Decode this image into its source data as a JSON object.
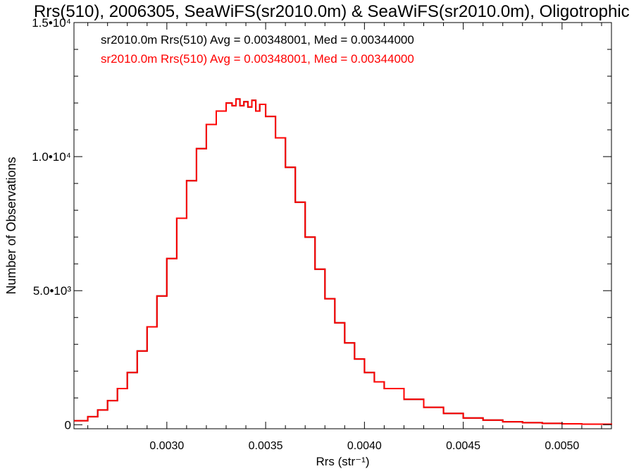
{
  "chart_data": {
    "type": "histogram",
    "title": "Rrs(510), 2006305, SeaWiFS(sr2010.0m) & SeaWiFS(sr2010.0m), Oligotrophic",
    "xlabel": "Rrs (str⁻¹)",
    "ylabel": "Number of Observations",
    "xlim": [
      0.00253,
      0.00525
    ],
    "ylim": [
      -150,
      15000
    ],
    "x_ticks": [
      {
        "value": 0.003,
        "label": "0.0030"
      },
      {
        "value": 0.0035,
        "label": "0.0035"
      },
      {
        "value": 0.004,
        "label": "0.0040"
      },
      {
        "value": 0.0045,
        "label": "0.0045"
      },
      {
        "value": 0.005,
        "label": "0.0050"
      }
    ],
    "y_ticks": [
      {
        "value": 0,
        "label": "0"
      },
      {
        "value": 5000,
        "label": "5.0•10³"
      },
      {
        "value": 10000,
        "label": "1.0•10⁴"
      },
      {
        "value": 15000,
        "label": "1.5•10⁴"
      }
    ],
    "annotations": [
      {
        "text": "sr2010.0m Rrs(510) Avg = 0.00348001, Med = 0.00344000",
        "color": "#000000"
      },
      {
        "text": "sr2010.0m Rrs(510) Avg = 0.00348001, Med = 0.00344000",
        "color": "#ff0000"
      }
    ],
    "series": [
      {
        "color": "#000000",
        "x": [
          0.00253,
          0.0026,
          0.00265,
          0.0027,
          0.00275,
          0.0028,
          0.00285,
          0.0029,
          0.00295,
          0.003,
          0.00305,
          0.0031,
          0.00315,
          0.0032,
          0.00325,
          0.0033,
          0.00333,
          0.00335,
          0.00337,
          0.00339,
          0.00341,
          0.00343,
          0.00345,
          0.00347,
          0.0035,
          0.00355,
          0.0036,
          0.00365,
          0.0037,
          0.00375,
          0.0038,
          0.00385,
          0.0039,
          0.00395,
          0.004,
          0.00405,
          0.0041,
          0.0042,
          0.0043,
          0.0044,
          0.0045,
          0.0046,
          0.0047,
          0.0048,
          0.0049,
          0.005,
          0.0051,
          0.00525
        ],
        "y": [
          150,
          300,
          550,
          900,
          1350,
          1950,
          2750,
          3650,
          4800,
          6200,
          7700,
          9100,
          10300,
          11200,
          11700,
          12000,
          11900,
          12150,
          11900,
          12050,
          11850,
          12100,
          11700,
          11950,
          11500,
          10700,
          9600,
          8300,
          7000,
          5800,
          4700,
          3800,
          3050,
          2450,
          1950,
          1600,
          1350,
          950,
          650,
          420,
          250,
          170,
          110,
          75,
          50,
          35,
          20,
          0
        ]
      },
      {
        "color": "#ff0000",
        "x": [
          0.00253,
          0.0026,
          0.00265,
          0.0027,
          0.00275,
          0.0028,
          0.00285,
          0.0029,
          0.00295,
          0.003,
          0.00305,
          0.0031,
          0.00315,
          0.0032,
          0.00325,
          0.0033,
          0.00333,
          0.00335,
          0.00337,
          0.00339,
          0.00341,
          0.00343,
          0.00345,
          0.00347,
          0.0035,
          0.00355,
          0.0036,
          0.00365,
          0.0037,
          0.00375,
          0.0038,
          0.00385,
          0.0039,
          0.00395,
          0.004,
          0.00405,
          0.0041,
          0.0042,
          0.0043,
          0.0044,
          0.0045,
          0.0046,
          0.0047,
          0.0048,
          0.0049,
          0.005,
          0.0051,
          0.00525
        ],
        "y": [
          150,
          300,
          550,
          900,
          1350,
          1950,
          2750,
          3650,
          4800,
          6200,
          7700,
          9100,
          10300,
          11200,
          11700,
          12000,
          11900,
          12150,
          11900,
          12050,
          11850,
          12100,
          11700,
          11950,
          11500,
          10700,
          9600,
          8300,
          7000,
          5800,
          4700,
          3800,
          3050,
          2450,
          1950,
          1600,
          1350,
          950,
          650,
          420,
          250,
          170,
          110,
          75,
          50,
          35,
          20,
          0
        ]
      }
    ],
    "grid": false,
    "legend": "top-left"
  }
}
